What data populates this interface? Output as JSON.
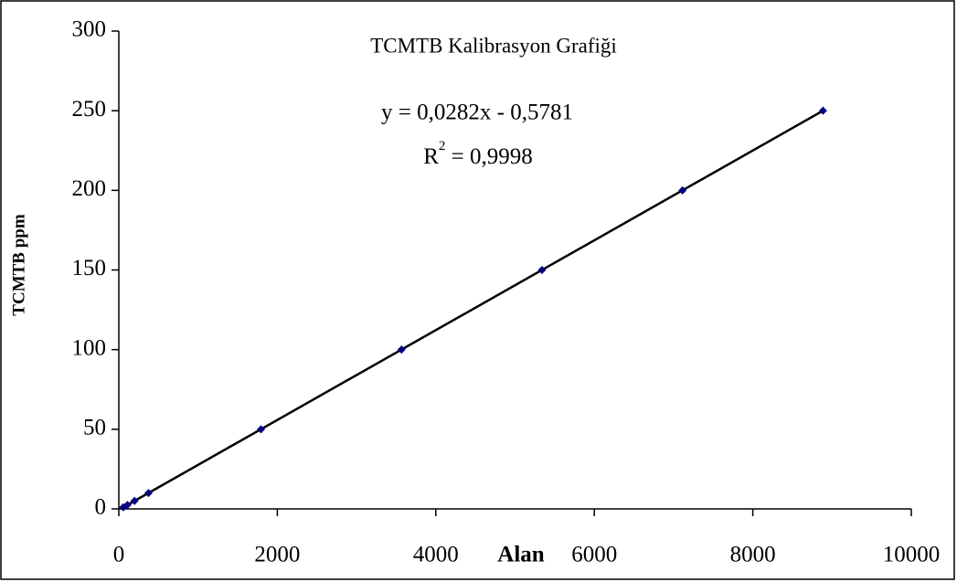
{
  "chart_data": {
    "type": "scatter",
    "title": "TCMTB Kalibrasyon Grafiği",
    "annotations": [
      "y = 0,0282x - 0,5781",
      "R",
      "2",
      " = 0,9998"
    ],
    "x_label": "Alan",
    "y_label": "TCMTB ppm",
    "series": [
      {
        "color": "#000080",
        "x": [
          56,
          109,
          198,
          375,
          1794,
          3567,
          5340,
          7113,
          8886
        ],
        "values": [
          1,
          2.5,
          5,
          10,
          50,
          100,
          150,
          200,
          250
        ]
      }
    ],
    "trendline": {
      "color": "#000000",
      "x": [
        20,
        8886
      ],
      "values": [
        0,
        250
      ]
    },
    "xlim": [
      0,
      10000
    ],
    "xticks": [
      0,
      2000,
      4000,
      6000,
      8000,
      10000
    ],
    "ylim": [
      0,
      300
    ],
    "yticks": [
      0,
      50,
      100,
      150,
      200,
      250,
      300
    ],
    "grid": false
  }
}
